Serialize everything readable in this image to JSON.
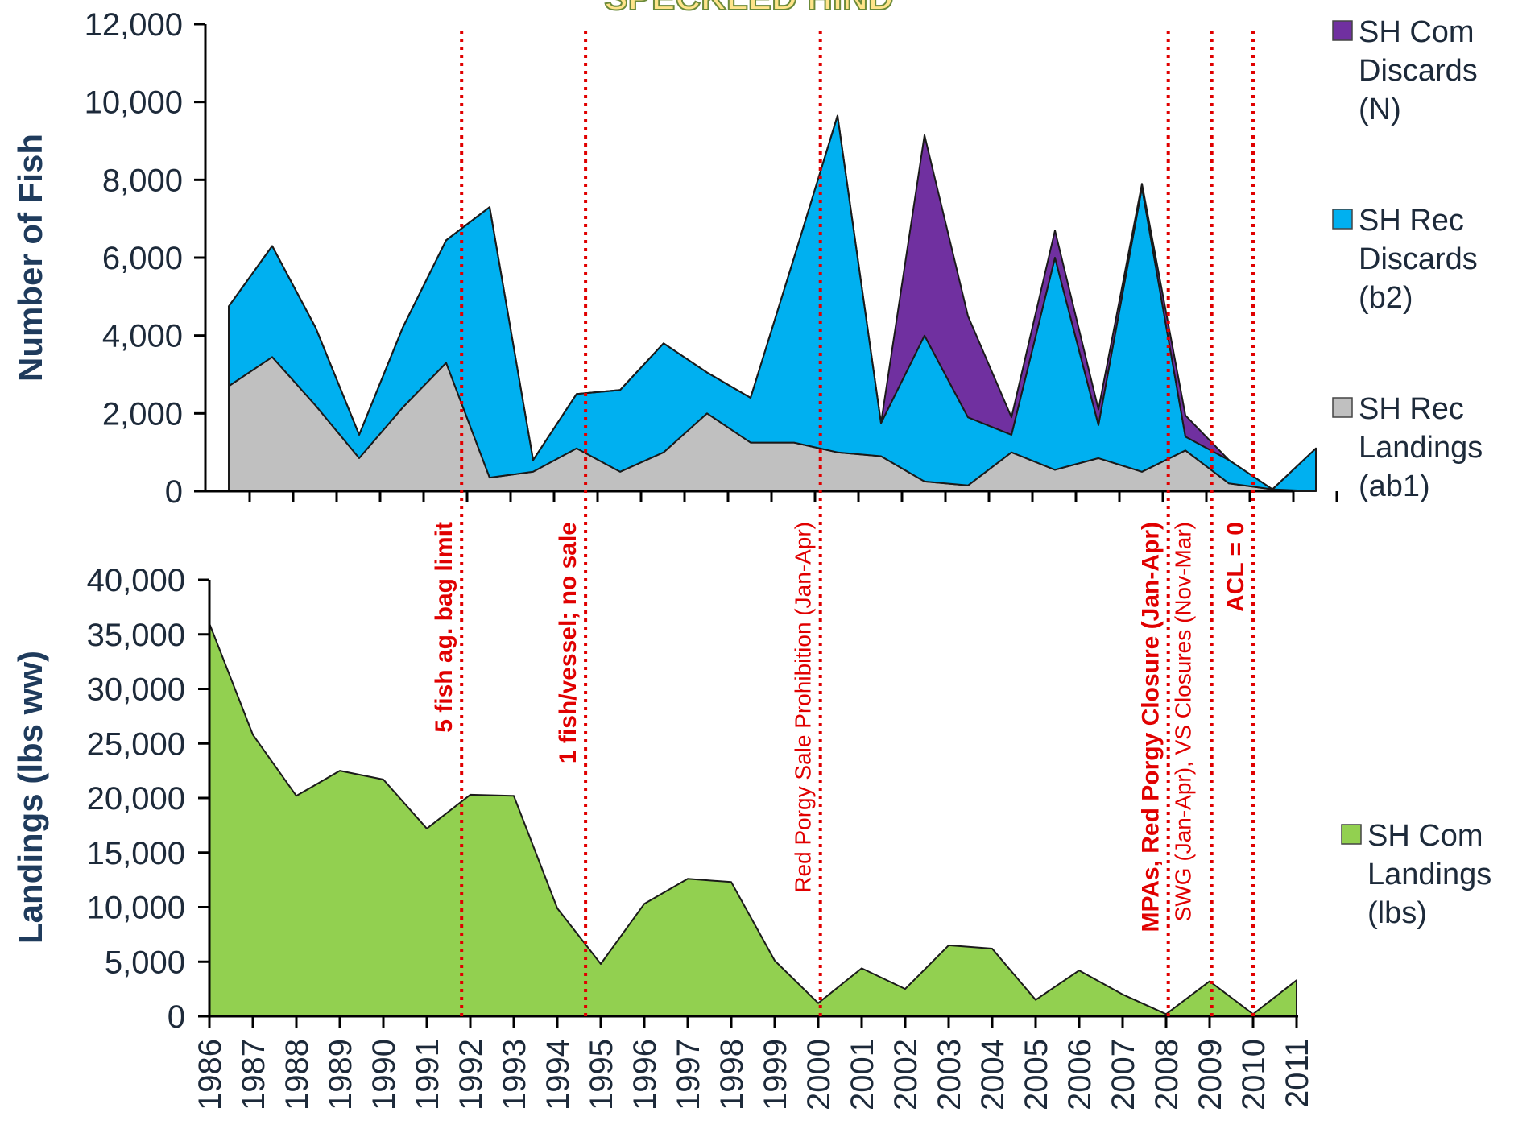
{
  "title": "SPECKLED HIND",
  "colors": {
    "com_discards": "#7030a0",
    "rec_discards": "#00b0f0",
    "rec_landings": "#c0c0c0",
    "com_landings": "#92d050",
    "regulation_line": "#e00000",
    "axis": "#000000",
    "axis_title": "#1f3b5c"
  },
  "chart_data": [
    {
      "type": "area",
      "stacked": true,
      "ylabel": "Number of Fish",
      "ylim": [
        0,
        12000
      ],
      "yticks": [
        0,
        2000,
        4000,
        6000,
        8000,
        10000,
        12000
      ],
      "ytick_labels": [
        "0",
        "2,000",
        "4,000",
        "6,000",
        "8,000",
        "10,000",
        "12,000"
      ],
      "x": [
        1986,
        1987,
        1988,
        1989,
        1990,
        1991,
        1992,
        1993,
        1994,
        1995,
        1996,
        1997,
        1998,
        1999,
        2000,
        2001,
        2002,
        2003,
        2004,
        2005,
        2006,
        2007,
        2008,
        2009,
        2010,
        2011
      ],
      "series": [
        {
          "name": "SH Rec Landings (ab1)",
          "color": "#c0c0c0",
          "values": [
            2700,
            3450,
            2200,
            850,
            2150,
            3300,
            350,
            500,
            1100,
            500,
            1000,
            2000,
            1250,
            1250,
            1000,
            900,
            250,
            150,
            1000,
            550,
            850,
            500,
            1050,
            200,
            50,
            0
          ]
        },
        {
          "name": "SH Rec Discards (b2)",
          "color": "#00b0f0",
          "values": [
            2050,
            2850,
            2000,
            600,
            2050,
            3150,
            6950,
            300,
            1400,
            2100,
            2800,
            1050,
            1150,
            4750,
            8650,
            850,
            3750,
            1750,
            450,
            5450,
            850,
            7300,
            350,
            600,
            0,
            1100
          ]
        },
        {
          "name": "SH Com Discards (N)",
          "color": "#7030a0",
          "values": [
            0,
            0,
            0,
            0,
            0,
            0,
            0,
            0,
            0,
            0,
            0,
            0,
            0,
            0,
            0,
            0,
            5150,
            2600,
            450,
            700,
            400,
            100,
            550,
            0,
            0,
            0
          ]
        }
      ]
    },
    {
      "type": "area",
      "ylabel": "Landings (lbs ww)",
      "ylim": [
        0,
        40000
      ],
      "yticks": [
        0,
        5000,
        10000,
        15000,
        20000,
        25000,
        30000,
        35000,
        40000
      ],
      "ytick_labels": [
        "0",
        "5,000",
        "10,000",
        "15,000",
        "20,000",
        "25,000",
        "30,000",
        "35,000",
        "40,000"
      ],
      "x": [
        1986,
        1987,
        1988,
        1989,
        1990,
        1991,
        1992,
        1993,
        1994,
        1995,
        1996,
        1997,
        1998,
        1999,
        2000,
        2001,
        2002,
        2003,
        2004,
        2005,
        2006,
        2007,
        2008,
        2009,
        2010,
        2011
      ],
      "categories": [
        "1986",
        "1987",
        "1988",
        "1989",
        "1990",
        "1991",
        "1992",
        "1993",
        "1994",
        "1995",
        "1996",
        "1997",
        "1998",
        "1999",
        "2000",
        "2001",
        "2002",
        "2003",
        "2004",
        "2005",
        "2006",
        "2007",
        "2008",
        "2009",
        "2010",
        "2011"
      ],
      "series": [
        {
          "name": "SH Com Landings (lbs)",
          "color": "#92d050",
          "values": [
            36000,
            25800,
            20200,
            22500,
            21700,
            17200,
            20300,
            20200,
            9900,
            4800,
            10300,
            12600,
            12300,
            5100,
            1200,
            4400,
            2500,
            6500,
            6200,
            1500,
            4200,
            2000,
            200,
            3200,
            200,
            3300
          ]
        }
      ]
    }
  ],
  "regulations": [
    {
      "year": 1991.8,
      "texts": [
        {
          "text": "5 fish ag. bag limit",
          "style": "bold"
        }
      ]
    },
    {
      "year": 1994.65,
      "texts": [
        {
          "text": "1 fish/vessel; no sale",
          "style": "bold"
        }
      ]
    },
    {
      "year": 2000.05,
      "texts": [
        {
          "text": "Red Porgy Sale Prohibition (Jan-Apr)",
          "style": "normal"
        }
      ]
    },
    {
      "year": 2008.05,
      "texts": [
        {
          "text": "MPAs, Red Porgy Closure (Jan-Apr)",
          "style": "bold"
        },
        {
          "text": "SWG (Jan-Apr), VS Closures (Nov-Mar)",
          "style": "normal"
        }
      ]
    },
    {
      "year": 2009.05,
      "texts": []
    },
    {
      "year": 2010.0,
      "texts": [
        {
          "text": "ACL = 0",
          "style": "bold"
        }
      ]
    }
  ],
  "legend_top": [
    {
      "name": "SH Com Discards (N)",
      "lines": [
        "SH Com",
        "Discards",
        "(N)"
      ],
      "color": "#7030a0"
    },
    {
      "name": "SH Rec Discards (b2)",
      "lines": [
        "SH Rec",
        "Discards",
        "(b2)"
      ],
      "color": "#00b0f0"
    },
    {
      "name": "SH Rec Landings (ab1)",
      "lines": [
        "SH Rec",
        "Landings",
        "(ab1)"
      ],
      "color": "#c0c0c0"
    }
  ],
  "legend_bottom": [
    {
      "name": "SH Com Landings (lbs)",
      "lines": [
        "SH Com",
        "Landings",
        "(lbs)"
      ],
      "color": "#92d050"
    }
  ]
}
